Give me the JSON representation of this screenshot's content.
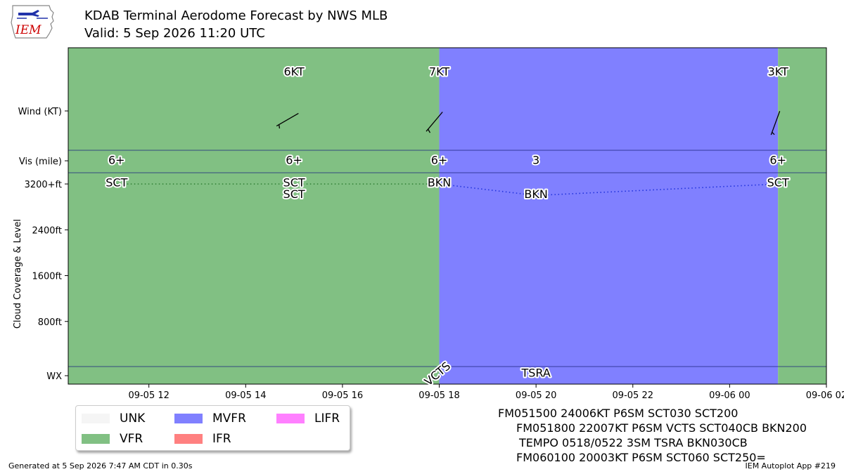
{
  "header": {
    "logo_text": "IEM",
    "title_line1": "KDAB Terminal Aerodome Forecast by NWS MLB",
    "title_line2": "Valid: 5 Sep 2026 11:20 UTC"
  },
  "colors": {
    "UNK": "#f5f5f5",
    "VFR": "#81c083",
    "MVFR": "#8080ff",
    "IFR": "#ff8080",
    "LIFR": "#ff80ff"
  },
  "chart_data": {
    "type": "timeline",
    "x_range": [
      "2026-09-05 10:20",
      "2026-09-06 02:00"
    ],
    "x_tick_labels": [
      "09-05 12",
      "09-05 14",
      "09-05 16",
      "09-05 18",
      "09-05 20",
      "09-05 22",
      "09-06 00",
      "09-06 02"
    ],
    "x_tick_times": [
      "2026-09-05 12:00",
      "2026-09-05 14:00",
      "2026-09-05 16:00",
      "2026-09-05 18:00",
      "2026-09-05 20:00",
      "2026-09-05 22:00",
      "2026-09-06 00:00",
      "2026-09-06 02:00"
    ],
    "row_labels": {
      "wind": "Wind (KT)",
      "vis": "Vis (mile)",
      "wx": "WX"
    },
    "ylabel": "Cloud Coverage & Level",
    "cloud_y_ticks": [
      {
        "value": 800,
        "label": "800ft"
      },
      {
        "value": 1600,
        "label": "1600ft"
      },
      {
        "value": 2400,
        "label": "2400ft"
      },
      {
        "value": 3200,
        "label": "3200+ft"
      }
    ],
    "cloud_ylim": [
      0,
      3200
    ],
    "categories": [
      {
        "start": "2026-09-05 10:20",
        "end": "2026-09-05 18:00",
        "category": "VFR"
      },
      {
        "start": "2026-09-05 18:00",
        "end": "2026-09-06 01:00",
        "category": "MVFR"
      },
      {
        "start": "2026-09-06 01:00",
        "end": "2026-09-06 02:00",
        "category": "VFR"
      }
    ],
    "wind": [
      {
        "time": "2026-09-05 15:00",
        "label": "6KT",
        "direction": 240,
        "speed": 6
      },
      {
        "time": "2026-09-05 18:00",
        "label": "7KT",
        "direction": 220,
        "speed": 7
      },
      {
        "time": "2026-09-06 01:00",
        "label": "3KT",
        "direction": 200,
        "speed": 3
      }
    ],
    "visibility": [
      {
        "time": "2026-09-05 11:20",
        "label": "6+"
      },
      {
        "time": "2026-09-05 15:00",
        "label": "6+"
      },
      {
        "time": "2026-09-05 18:00",
        "label": "6+"
      },
      {
        "time": "2026-09-05 20:00",
        "label": "3"
      },
      {
        "time": "2026-09-06 01:00",
        "label": "6+"
      }
    ],
    "clouds": [
      {
        "time": "2026-09-05 11:20",
        "cover": "SCT",
        "level": 3200
      },
      {
        "time": "2026-09-05 15:00",
        "cover": "SCT",
        "level": 3200
      },
      {
        "time": "2026-09-05 15:00",
        "cover": "SCT",
        "level": 3000
      },
      {
        "time": "2026-09-05 18:00",
        "cover": "BKN",
        "level": 3200
      },
      {
        "time": "2026-09-05 20:00",
        "cover": "BKN",
        "level": 3000
      },
      {
        "time": "2026-09-06 01:00",
        "cover": "SCT",
        "level": 3200
      }
    ],
    "cloud_lines": [
      {
        "points": [
          [
            "2026-09-05 11:20",
            3200
          ],
          [
            "2026-09-05 15:00",
            3200
          ],
          [
            "2026-09-05 18:00",
            3200
          ]
        ],
        "color": "#2e7d32"
      },
      {
        "points": [
          [
            "2026-09-05 18:00",
            3200
          ],
          [
            "2026-09-05 20:00",
            3000
          ],
          [
            "2026-09-06 01:00",
            3200
          ]
        ],
        "color": "#2233dd"
      }
    ],
    "weather": [
      {
        "time": "2026-09-05 18:00",
        "label": "VCTS",
        "rotated": true
      },
      {
        "time": "2026-09-05 20:00",
        "label": "TSRA",
        "rotated": false
      }
    ],
    "legend": [
      "UNK",
      "VFR",
      "MVFR",
      "IFR",
      "LIFR"
    ]
  },
  "taf_text": [
    "FM051500 24006KT P6SM SCT030 SCT200",
    "FM051800 22007KT P6SM VCTS SCT040CB BKN200",
    "TEMPO 0518/0522 3SM TSRA BKN030CB",
    "FM060100 20003KT P6SM SCT060 SCT250="
  ],
  "footer": {
    "left": "Generated at 5 Sep 2026 7:47 AM CDT in 0.30s",
    "right": "IEM Autoplot App #219"
  }
}
